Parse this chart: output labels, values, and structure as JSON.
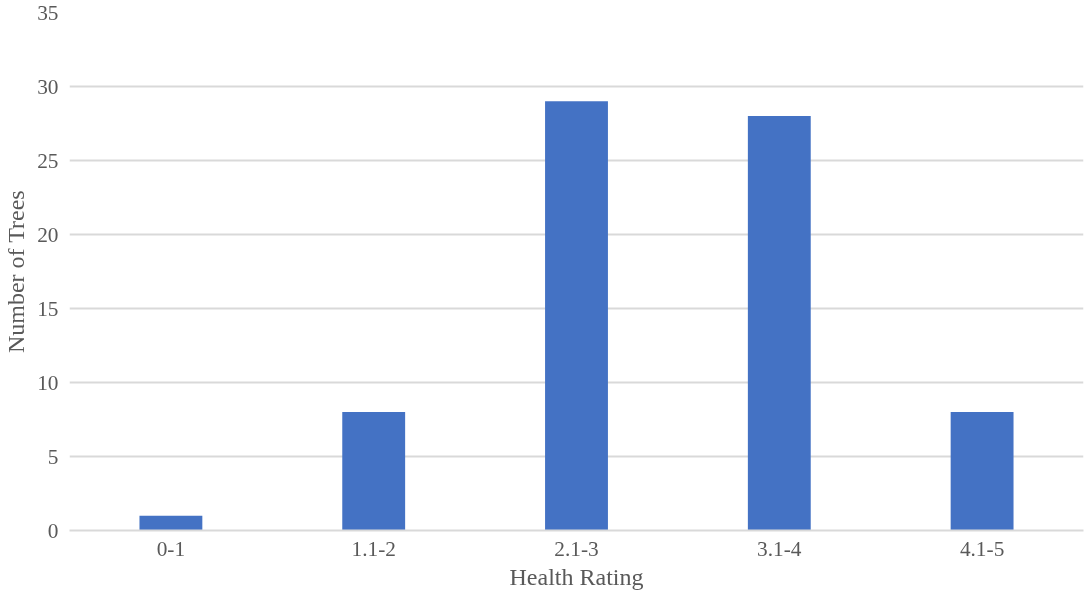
{
  "chart_data": {
    "type": "bar",
    "xlabel": "Health Rating",
    "ylabel": "Number of Trees",
    "categories": [
      "0-1",
      "1.1-2",
      "2.1-3",
      "3.1-4",
      "4.1-5"
    ],
    "values": [
      1,
      8,
      29,
      28,
      8
    ],
    "color": "#4472c4",
    "ylim": [
      0,
      35
    ],
    "yticks": [
      0,
      5,
      10,
      15,
      20,
      25,
      30,
      35
    ],
    "grid": "y"
  }
}
